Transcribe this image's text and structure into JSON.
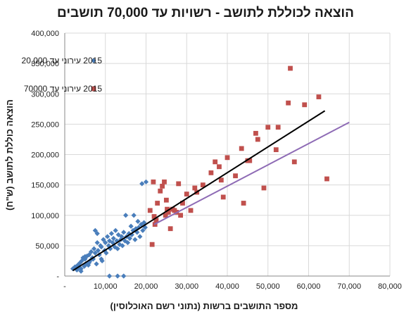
{
  "chart_data": {
    "type": "scatter",
    "title": "הוצאה לכוללת לתושב - רשויות עד 70,000 תושבים",
    "xlabel": "מספר התושבים ברשות (נתוני רשם האוכלוסין)",
    "ylabel": "הוצאה כוללת לתושב (ש\"ח)",
    "xlim": [
      0,
      80000
    ],
    "ylim": [
      0,
      400000
    ],
    "x_ticks": [
      {
        "value": 0,
        "label": "-"
      },
      {
        "value": 10000,
        "label": "10,000"
      },
      {
        "value": 20000,
        "label": "20,000"
      },
      {
        "value": 30000,
        "label": "30,000"
      },
      {
        "value": 40000,
        "label": "40,000"
      },
      {
        "value": 50000,
        "label": "50,000"
      },
      {
        "value": 60000,
        "label": "60,000"
      },
      {
        "value": 70000,
        "label": "70,000"
      },
      {
        "value": 80000,
        "label": "80,000"
      }
    ],
    "y_ticks": [
      {
        "value": 0,
        "label": "-"
      },
      {
        "value": 50000,
        "label": "50,000"
      },
      {
        "value": 100000,
        "label": "100,000"
      },
      {
        "value": 150000,
        "label": "150,000"
      },
      {
        "value": 200000,
        "label": "200,000"
      },
      {
        "value": 250000,
        "label": "250,000"
      },
      {
        "value": 300000,
        "label": "300,000"
      },
      {
        "value": 350000,
        "label": "350,000"
      },
      {
        "value": 400000,
        "label": "400,000"
      }
    ],
    "grid": true,
    "legend_position": "top-left",
    "series": [
      {
        "name": "2015 עירוני עד 20,000",
        "color": "#4a7ebb",
        "marker": "diamond",
        "points": [
          [
            2000,
            12000
          ],
          [
            2500,
            15000
          ],
          [
            3000,
            10000
          ],
          [
            3200,
            18000
          ],
          [
            3500,
            14000
          ],
          [
            3800,
            22000
          ],
          [
            4000,
            12000
          ],
          [
            4200,
            25000
          ],
          [
            4500,
            30000
          ],
          [
            4800,
            16000
          ],
          [
            5000,
            28000
          ],
          [
            5200,
            20000
          ],
          [
            5500,
            33000
          ],
          [
            5800,
            18000
          ],
          [
            6000,
            35000
          ],
          [
            6200,
            25000
          ],
          [
            6500,
            40000
          ],
          [
            6800,
            30000
          ],
          [
            7000,
            28000
          ],
          [
            7200,
            45000
          ],
          [
            7500,
            38000
          ],
          [
            7800,
            20000
          ],
          [
            8000,
            55000
          ],
          [
            8200,
            42000
          ],
          [
            8500,
            35000
          ],
          [
            8800,
            50000
          ],
          [
            9000,
            48000
          ],
          [
            9200,
            25000
          ],
          [
            9500,
            60000
          ],
          [
            9800,
            42000
          ],
          [
            10000,
            55000
          ],
          [
            10200,
            38000
          ],
          [
            10500,
            65000
          ],
          [
            10800,
            50000
          ],
          [
            11000,
            58000
          ],
          [
            11200,
            45000
          ],
          [
            11500,
            70000
          ],
          [
            11800,
            55000
          ],
          [
            12000,
            62000
          ],
          [
            12300,
            48000
          ],
          [
            12500,
            75000
          ],
          [
            12800,
            58000
          ],
          [
            13000,
            45000
          ],
          [
            13200,
            68000
          ],
          [
            13500,
            52000
          ],
          [
            13800,
            60000
          ],
          [
            14000,
            65000
          ],
          [
            14200,
            50000
          ],
          [
            14500,
            72000
          ],
          [
            14800,
            58000
          ],
          [
            15000,
            100000
          ],
          [
            15200,
            65000
          ],
          [
            15500,
            55000
          ],
          [
            15800,
            70000
          ],
          [
            16000,
            62000
          ],
          [
            16300,
            82000
          ],
          [
            16500,
            68000
          ],
          [
            16800,
            75000
          ],
          [
            17000,
            100000
          ],
          [
            17300,
            60000
          ],
          [
            17500,
            78000
          ],
          [
            17800,
            72000
          ],
          [
            18000,
            90000
          ],
          [
            18200,
            80000
          ],
          [
            18500,
            65000
          ],
          [
            18800,
            85000
          ],
          [
            19000,
            152000
          ],
          [
            19200,
            75000
          ],
          [
            19500,
            88000
          ],
          [
            19800,
            80000
          ],
          [
            20000,
            155000
          ],
          [
            7500,
            75000
          ],
          [
            8000,
            70000
          ],
          [
            6000,
            22000
          ],
          [
            5000,
            32000
          ],
          [
            11000,
            0
          ],
          [
            13000,
            0
          ],
          [
            14500,
            0
          ],
          [
            9000,
            28000
          ],
          [
            4000,
            8000
          ]
        ]
      },
      {
        "name": "2015 עירוני עד 70000",
        "color": "#c0504d",
        "marker": "square",
        "points": [
          [
            21000,
            108000
          ],
          [
            21500,
            52000
          ],
          [
            21800,
            155000
          ],
          [
            22000,
            98000
          ],
          [
            22200,
            85000
          ],
          [
            22500,
            92000
          ],
          [
            22800,
            120000
          ],
          [
            23500,
            140000
          ],
          [
            24000,
            148000
          ],
          [
            24500,
            155000
          ],
          [
            24800,
            100000
          ],
          [
            25000,
            125000
          ],
          [
            25200,
            110000
          ],
          [
            25500,
            105000
          ],
          [
            26000,
            78000
          ],
          [
            26500,
            110000
          ],
          [
            27000,
            108000
          ],
          [
            27500,
            105000
          ],
          [
            28000,
            152000
          ],
          [
            28500,
            100000
          ],
          [
            29000,
            120000
          ],
          [
            30000,
            135000
          ],
          [
            31000,
            108000
          ],
          [
            32000,
            145000
          ],
          [
            32500,
            138000
          ],
          [
            34000,
            150000
          ],
          [
            36000,
            170000
          ],
          [
            37000,
            188000
          ],
          [
            38000,
            180000
          ],
          [
            38500,
            158000
          ],
          [
            39000,
            130000
          ],
          [
            40000,
            195000
          ],
          [
            42000,
            165000
          ],
          [
            43500,
            210000
          ],
          [
            44000,
            120000
          ],
          [
            45000,
            190000
          ],
          [
            45500,
            190000
          ],
          [
            47000,
            235000
          ],
          [
            47500,
            225000
          ],
          [
            49000,
            145000
          ],
          [
            50000,
            245000
          ],
          [
            52000,
            208000
          ],
          [
            52500,
            245000
          ],
          [
            55000,
            285000
          ],
          [
            55500,
            342000
          ],
          [
            56500,
            188000
          ],
          [
            59000,
            282000
          ],
          [
            62500,
            295000
          ],
          [
            64500,
            160000
          ]
        ]
      }
    ],
    "trendlines": [
      {
        "series": "2015 עירוני עד 70000",
        "color": "#000000",
        "from": [
          2000,
          9000
        ],
        "to": [
          64000,
          272000
        ]
      },
      {
        "series": "2015 עירוני עד 20,000",
        "color": "#8e6bb5",
        "from": [
          22000,
          85000
        ],
        "to": [
          70000,
          253000
        ]
      }
    ]
  }
}
